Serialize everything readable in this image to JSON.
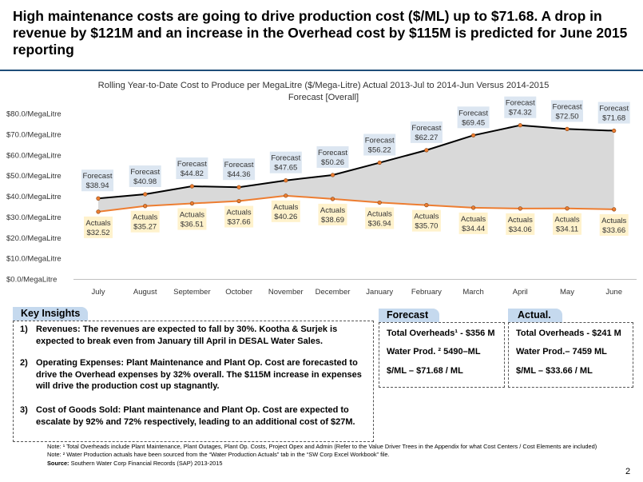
{
  "headline": "High maintenance costs are going to drive production cost ($/ML) up to $71.68. A drop in revenue by $121M and an increase in the Overhead cost by $115M is predicted for June 2015 reporting",
  "chart_data": {
    "type": "line",
    "title": "Rolling Year-to-Date Cost to Produce per MegaLitre ($/Mega-Litre) Actual 2013-Jul to 2014-Jun Versus 2014-2015 Forecast [Overall]",
    "categories": [
      "July",
      "August",
      "September",
      "October",
      "November",
      "December",
      "January",
      "February",
      "March",
      "April",
      "May",
      "June"
    ],
    "y_ticks": [
      "$0.0/MegaLitre",
      "$10.0/MegaLitre",
      "$20.0/MegaLitre",
      "$30.0/MegaLitre",
      "$40.0/MegaLitre",
      "$50.0/MegaLitre",
      "$60.0/MegaLitre",
      "$70.0/MegaLitre",
      "$80.0/MegaLitre"
    ],
    "ylim": [
      0,
      80
    ],
    "grid": false,
    "series": [
      {
        "name": "Forecast",
        "color": "#000000",
        "values": [
          38.94,
          40.98,
          44.82,
          44.36,
          47.65,
          50.26,
          56.22,
          62.27,
          69.45,
          74.32,
          72.5,
          71.68
        ],
        "labels": [
          "$38.94",
          "$40.98",
          "$44.82",
          "$44.36",
          "$47.65",
          "$50.26",
          "$56.22",
          "$62.27",
          "$69.45",
          "$74.32",
          "$72.50",
          "$71.68"
        ]
      },
      {
        "name": "Actuals",
        "color": "#ed7d31",
        "values": [
          32.52,
          35.27,
          36.51,
          37.66,
          40.26,
          38.69,
          36.94,
          35.7,
          34.44,
          34.06,
          34.11,
          33.66
        ],
        "labels": [
          "$32.52",
          "$35.27",
          "$36.51",
          "$37.66",
          "$40.26",
          "$38.69",
          "$36.94",
          "$35.70",
          "$34.44",
          "$34.06",
          "$34.11",
          "$33.66"
        ]
      }
    ],
    "fill_between_color": "#d9d9d9",
    "forecast_label_bg": "#dce6f1",
    "actual_label_bg": "#fff2cc"
  },
  "insights": {
    "tab": "Key Insights",
    "items": [
      {
        "num": "1)",
        "text": "Revenues: The revenues are expected to fall by 30%. Kootha & Surjek is expected to break even from January till April in DESAL Water Sales."
      },
      {
        "num": "2)",
        "text": "Operating Expenses: Plant Maintenance and Plant Op. Cost are forecasted to drive the Overhead expenses by 32% overall. The $115M increase in expenses will drive the production cost up stagnantly."
      },
      {
        "num": "3)",
        "text": "Cost of Goods Sold: Plant maintenance and Plant Op. Cost are expected to escalate by 92% and 72% respectively, leading to an additional cost of $27M."
      }
    ]
  },
  "forecast_panel": {
    "tab": "Forecast",
    "lines": [
      "Total Overheads¹ - $356 M",
      "Water Prod. ² 5490–ML",
      "$/ML – $71.68 / ML"
    ]
  },
  "actual_panel": {
    "tab": "Actual.",
    "lines": [
      "Total Overheads - $241 M",
      "Water Prod.– 7459 ML",
      "$/ML – $33.66 / ML"
    ]
  },
  "notes": {
    "note1": "Note: ¹ Total Overheads include Plant Maintenance, Plant Outages, Plant Op. Costs, Project Opex and Admin (Refer to the Value Driver Trees in the Appendix for what Cost Centers / Cost Elements are included)",
    "note2": "Note: ² Water Production actuals have been sourced from the “Water Production Actuals” tab in the “SW Corp Excel Workbook” file.",
    "source_label": "Source:",
    "source_text": " Southern Water Corp Financial Records (SAP) 2013-2015"
  },
  "page_number": "2"
}
